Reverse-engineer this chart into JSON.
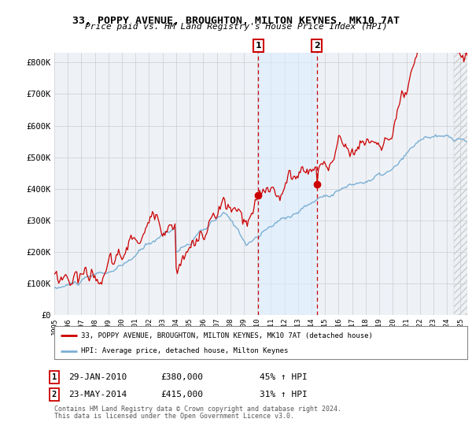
{
  "title": "33, POPPY AVENUE, BROUGHTON, MILTON KEYNES, MK10 7AT",
  "subtitle": "Price paid vs. HM Land Registry's House Price Index (HPI)",
  "legend_line1": "33, POPPY AVENUE, BROUGHTON, MILTON KEYNES, MK10 7AT (detached house)",
  "legend_line2": "HPI: Average price, detached house, Milton Keynes",
  "annotation1_date": "29-JAN-2010",
  "annotation1_price": "£380,000",
  "annotation1_hpi": "45% ↑ HPI",
  "annotation2_date": "23-MAY-2014",
  "annotation2_price": "£415,000",
  "annotation2_hpi": "31% ↑ HPI",
  "footer1": "Contains HM Land Registry data © Crown copyright and database right 2024.",
  "footer2": "This data is licensed under the Open Government Licence v3.0.",
  "date1_num": 2010.07,
  "date2_num": 2014.38,
  "price1": 380000,
  "price2": 415000,
  "hpi_color": "#7bafd4",
  "property_color": "#cc0000",
  "dot_color": "#cc0000",
  "vline_color": "#cc0000",
  "shade_color": "#ddeeff",
  "chart_bg": "#eef2f7",
  "grid_color": "#cccccc",
  "box_color": "#cc0000",
  "ylim_max": 830000,
  "xlim_start": 1995.0,
  "xlim_end": 2025.5,
  "hatch_color": "#cccccc"
}
